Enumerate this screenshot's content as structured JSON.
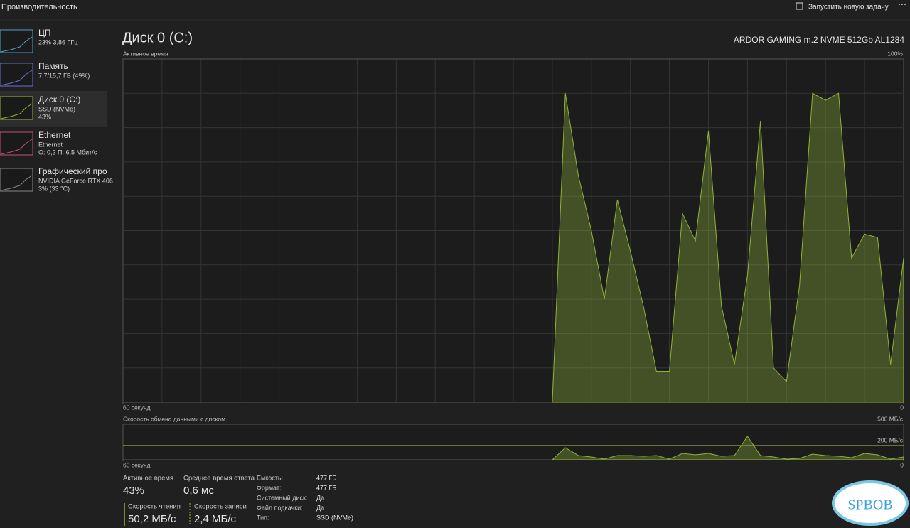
{
  "header": {
    "title": "Производительность",
    "action": "Запустить новую задачу"
  },
  "sidebar": [
    {
      "name": "ЦП",
      "lines": [
        "23% 3,86 ГГц"
      ]
    },
    {
      "name": "Память",
      "lines": [
        "7,7/15,7 ГБ (49%)"
      ]
    },
    {
      "name": "Диск 0 (C:)",
      "lines": [
        "SSD (NVMe)",
        "43%"
      ]
    },
    {
      "name": "Ethernet",
      "lines": [
        "Ethernet",
        "О: 0,2 П: 6,5 Мбит/с"
      ]
    },
    {
      "name": "Графический про",
      "lines": [
        "NVIDIA GeForce RTX 406",
        "3% (33 °C)"
      ]
    }
  ],
  "panel": {
    "title": "Диск 0 (C:)",
    "model": "ARDOR GAMING m.2 NVME 512Gb AL1284"
  },
  "chart_data": [
    {
      "type": "area",
      "title": "Активное время",
      "color": "#8fb339",
      "xlim": [
        60,
        0
      ],
      "xticks": [
        {
          "value": 60,
          "label": "60 секунд"
        },
        0
      ],
      "ylim": [
        0,
        100
      ],
      "yticks": [
        {
          "value": 100,
          "label": "100%"
        }
      ],
      "x": [
        27,
        26,
        25,
        24,
        23,
        22,
        21,
        20,
        19,
        18,
        17,
        16,
        15,
        14,
        13,
        12,
        11,
        10,
        9,
        8,
        7,
        6,
        5,
        4,
        3,
        2,
        1,
        0
      ],
      "series": [
        {
          "values": [
            0,
            90,
            66,
            50,
            30,
            59,
            44,
            28,
            9,
            9,
            55,
            47,
            79,
            28,
            11,
            37,
            82,
            10,
            6,
            34,
            90,
            88,
            90,
            42,
            49,
            48,
            11,
            42
          ]
        }
      ]
    },
    {
      "type": "area",
      "title": "Скорость обмена данными с диском",
      "color": "#8fb339",
      "xlim": [
        60,
        0
      ],
      "xticks": [
        {
          "value": 60,
          "label": "60 секунд"
        },
        0
      ],
      "ylim": [
        0,
        500
      ],
      "yticks": [
        {
          "value": 500,
          "label": "500 МБ/с"
        },
        {
          "value": 200,
          "label": "200 МБ/с"
        }
      ],
      "x": [
        27,
        26,
        25,
        24,
        23,
        22,
        21,
        20,
        19,
        18,
        17,
        16,
        15,
        14,
        13,
        12,
        11,
        10,
        9,
        8,
        7,
        6,
        5,
        4,
        3,
        2,
        1,
        0
      ],
      "series": [
        {
          "values": [
            0,
            170,
            60,
            40,
            10,
            60,
            60,
            50,
            60,
            10,
            90,
            70,
            90,
            50,
            60,
            330,
            60,
            40,
            10,
            20,
            80,
            60,
            50,
            30,
            90,
            70,
            10,
            40
          ]
        }
      ]
    }
  ],
  "stats": [
    {
      "label": "Активное время",
      "value": "43%"
    },
    {
      "label": "Среднее время ответа",
      "value": "0,6 мс"
    },
    {
      "label": "Скорость чтения",
      "value": "50,2 МБ/с"
    },
    {
      "label": "Скорость записи",
      "value": "2,4 МБ/с"
    }
  ],
  "properties": [
    [
      "Емкость:",
      "477 ГБ"
    ],
    [
      "Формат:",
      "477 ГБ"
    ],
    [
      "Системный диск:",
      "Да"
    ],
    [
      "Файл подкачки:",
      "Да"
    ],
    [
      "Тип:",
      "SSD (NVMe)"
    ]
  ],
  "watermark": "SPBOB"
}
